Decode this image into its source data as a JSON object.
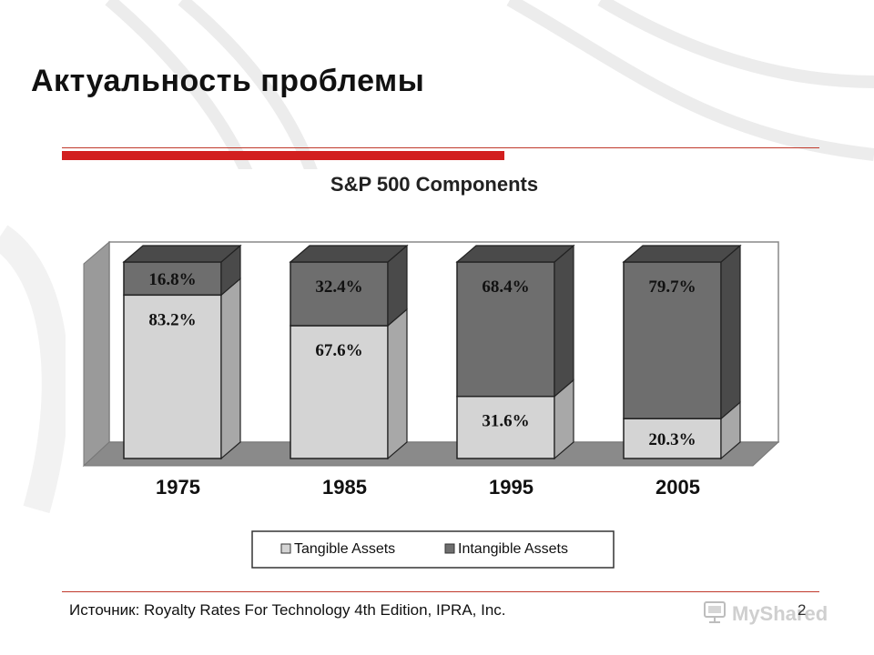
{
  "slide": {
    "title": "Актуальность проблемы",
    "source": "Источник: Royalty Rates For Technology 4th Edition, IPRA, Inc.",
    "page_number": "2"
  },
  "watermark": {
    "text": "MyShared",
    "icon": "monitor-icon"
  },
  "colors": {
    "accent": "#d21f1f",
    "tangible": "#d4d4d4",
    "intangible": "#6e6e6e"
  },
  "chart_data": {
    "type": "bar",
    "stacked": true,
    "title": "S&P 500 Components",
    "categories": [
      "1975",
      "1985",
      "1995",
      "2005"
    ],
    "series": [
      {
        "name": "Tangible Assets",
        "values": [
          83.2,
          67.6,
          31.6,
          20.3
        ],
        "labels": [
          "83.2%",
          "67.6%",
          "31.6%",
          "20.3%"
        ]
      },
      {
        "name": "Intangible Assets",
        "values": [
          16.8,
          32.4,
          68.4,
          79.7
        ],
        "labels": [
          "16.8%",
          "32.4%",
          "68.4%",
          "79.7%"
        ]
      }
    ],
    "ylim": [
      0,
      100
    ],
    "legend_position": "bottom",
    "grid": false
  }
}
